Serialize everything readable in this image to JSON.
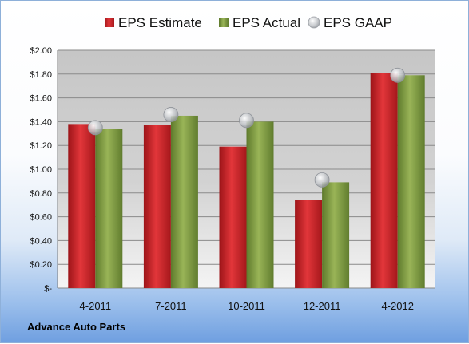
{
  "chart_data": {
    "type": "bar",
    "categories": [
      "4-2011",
      "7-2011",
      "10-2011",
      "12-2011",
      "4-2012"
    ],
    "series": [
      {
        "name": "EPS Estimate",
        "kind": "bar",
        "color": "#d0272b",
        "values": [
          1.38,
          1.37,
          1.19,
          0.74,
          1.81
        ]
      },
      {
        "name": "EPS Actual",
        "kind": "bar",
        "color": "#7f9d41",
        "values": [
          1.34,
          1.45,
          1.4,
          0.89,
          1.79
        ]
      },
      {
        "name": "EPS GAAP",
        "kind": "marker",
        "color": "#b9bdc2",
        "values": [
          1.35,
          1.46,
          1.41,
          0.91,
          1.79
        ]
      }
    ],
    "yticks": [
      "$-",
      "$0.20",
      "$0.40",
      "$0.60",
      "$0.80",
      "$1.00",
      "$1.20",
      "$1.40",
      "$1.60",
      "$1.80",
      "$2.00"
    ],
    "ylim": [
      0,
      2.0
    ],
    "ytick_step": 0.2,
    "grid": true,
    "legend_position": "top"
  },
  "footer": {
    "company": "Advance Auto Parts"
  }
}
